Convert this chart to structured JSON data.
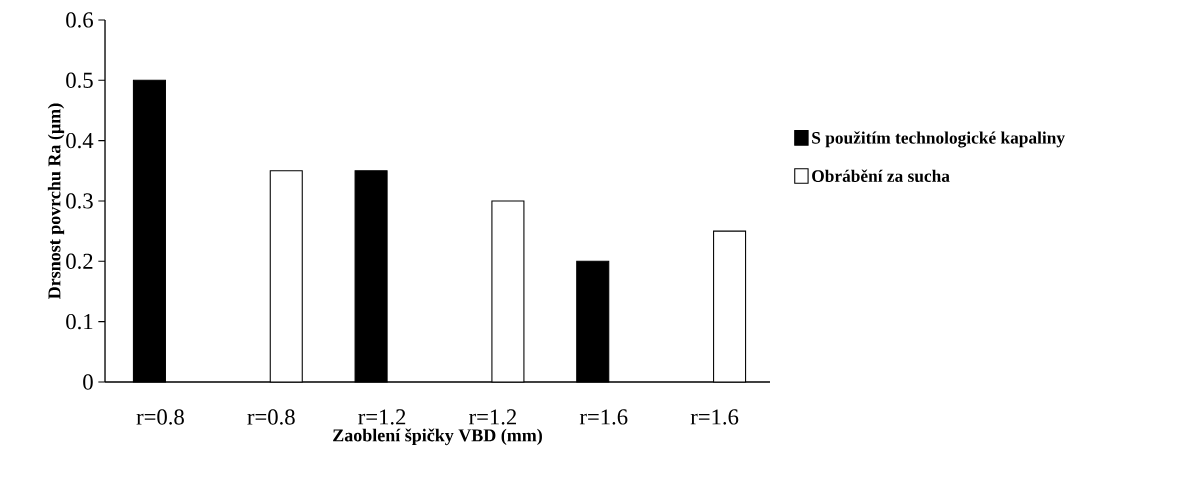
{
  "chart_data": {
    "type": "bar",
    "xlabel": "Zaoblení špičky VBD (mm)",
    "ylabel": "Drsnost povrchu Ra (µm)",
    "categories": [
      "r=0.8",
      "r=0.8",
      "r=1.2",
      "r=1.2",
      "r=1.6",
      "r=1.6"
    ],
    "series": [
      {
        "name": "S použitím technologické kapaliny",
        "color": "#000000",
        "values": [
          0.5,
          null,
          0.35,
          null,
          0.2,
          null
        ]
      },
      {
        "name": "Obrábění za sucha",
        "color": "#ffffff",
        "values": [
          null,
          0.35,
          null,
          0.3,
          null,
          0.25
        ]
      }
    ],
    "ylim": [
      0,
      0.6
    ],
    "yticks": [
      0,
      0.1,
      0.2,
      0.3,
      0.4,
      0.5,
      0.6
    ],
    "grid": false,
    "legend": "right"
  }
}
